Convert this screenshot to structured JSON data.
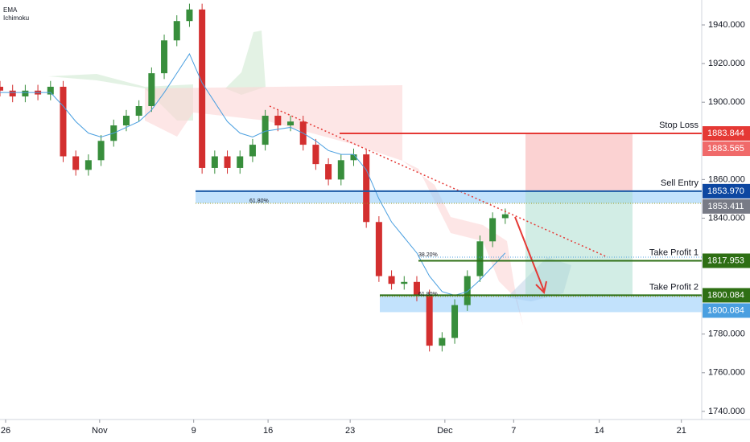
{
  "chart_data": {
    "type": "candlestick",
    "indicators": [
      "EMA",
      "Ichimoku"
    ],
    "xlim": [
      0,
      100
    ],
    "ylim": [
      1735.8,
      1952.9
    ],
    "xticks": [
      {
        "value": 0.8,
        "label": "26"
      },
      {
        "value": 14.2,
        "label": "Nov"
      },
      {
        "value": 27.6,
        "label": "9"
      },
      {
        "value": 38.2,
        "label": "16"
      },
      {
        "value": 49.9,
        "label": "23"
      },
      {
        "value": 63.4,
        "label": "Dec"
      },
      {
        "value": 73.2,
        "label": "7"
      },
      {
        "value": 85.4,
        "label": "14"
      },
      {
        "value": 97.1,
        "label": "21"
      }
    ],
    "yticks": [
      {
        "value": 1940,
        "label": "1940.000"
      },
      {
        "value": 1920,
        "label": "1920.000"
      },
      {
        "value": 1900,
        "label": "1900.000"
      },
      {
        "value": 1860,
        "label": "1860.000"
      },
      {
        "value": 1840,
        "label": "1840.000"
      },
      {
        "value": 1780,
        "label": "1780.000"
      },
      {
        "value": 1760,
        "label": "1760.000"
      },
      {
        "value": 1740,
        "label": "1740.000"
      }
    ],
    "x": [
      0,
      1.8,
      3.6,
      5.4,
      7.2,
      9,
      10.8,
      12.6,
      14.4,
      16.2,
      18,
      19.8,
      21.6,
      23.4,
      25.2,
      27,
      28.8,
      30.6,
      32.4,
      34.2,
      36,
      37.8,
      39.6,
      41.4,
      43.2,
      45,
      46.8,
      48.6,
      50.4,
      52.2,
      54,
      55.8,
      57.6,
      59.4,
      61.2,
      63,
      64.8,
      66.6,
      68.4,
      70.2,
      72
    ],
    "open": [
      1908,
      1906,
      1903,
      1906,
      1904,
      1908,
      1872,
      1865,
      1870,
      1880,
      1888,
      1893,
      1898,
      1915,
      1932,
      1942,
      1948,
      1866,
      1872,
      1866,
      1872,
      1878,
      1893,
      1888,
      1890,
      1878,
      1868,
      1860,
      1870,
      1873,
      1838,
      1810,
      1806,
      1807,
      1800,
      1774,
      1778,
      1795,
      1810,
      1828,
      1840
    ],
    "high": [
      1911,
      1909,
      1909,
      1909,
      1911,
      1911,
      1875,
      1873,
      1883,
      1891,
      1896,
      1901,
      1918,
      1935,
      1945,
      1951,
      1951,
      1875,
      1875,
      1875,
      1881,
      1896,
      1896,
      1893,
      1893,
      1881,
      1871,
      1873,
      1876,
      1876,
      1841,
      1813,
      1810,
      1810,
      1803,
      1781,
      1798,
      1813,
      1831,
      1843,
      1845
    ],
    "low": [
      1903,
      1900,
      1900,
      1901,
      1901,
      1869,
      1862,
      1862,
      1867,
      1877,
      1885,
      1890,
      1895,
      1912,
      1929,
      1939,
      1863,
      1863,
      1863,
      1863,
      1869,
      1875,
      1885,
      1885,
      1875,
      1865,
      1857,
      1857,
      1867,
      1835,
      1807,
      1803,
      1803,
      1797,
      1771,
      1771,
      1775,
      1792,
      1807,
      1825,
      1837
    ],
    "close": [
      1906,
      1903,
      1906,
      1904,
      1908,
      1872,
      1865,
      1870,
      1880,
      1888,
      1893,
      1898,
      1915,
      1932,
      1942,
      1948,
      1866,
      1872,
      1866,
      1872,
      1878,
      1893,
      1888,
      1890,
      1878,
      1868,
      1860,
      1870,
      1873,
      1838,
      1810,
      1806,
      1807,
      1800,
      1774,
      1778,
      1795,
      1810,
      1828,
      1840,
      1842
    ],
    "ema": [
      1905,
      1905,
      1905,
      1905,
      1905,
      1898,
      1890,
      1884,
      1882,
      1884,
      1887,
      1890,
      1896,
      1905,
      1915,
      1925,
      1910,
      1900,
      1890,
      1884,
      1882,
      1885,
      1886,
      1887,
      1884,
      1880,
      1875,
      1873,
      1873,
      1865,
      1850,
      1838,
      1830,
      1822,
      1810,
      1802,
      1800,
      1802,
      1808,
      1815,
      1822
    ],
    "up_color": "#388e3c",
    "down_color": "#d32f2f",
    "ema_color": "#4a9fe0",
    "levels": [
      {
        "name": "Stop Loss",
        "value": 1883.844,
        "color": "#e53935"
      },
      {
        "name": "Sell Entry",
        "value": 1853.97,
        "color": "#1b5aa6"
      },
      {
        "name": "Take Profit 1",
        "value": 1817.953,
        "color": "#2e6f14"
      },
      {
        "name": "Take Profit 2",
        "value": 1800.084,
        "color": "#2e6f14"
      }
    ],
    "price_tags": [
      {
        "value": 1883.844,
        "label": "1883.844",
        "color": "#e53935"
      },
      {
        "value": 1883.565,
        "label": "1883.565",
        "color": "#f06a6a"
      },
      {
        "value": 1853.97,
        "label": "1853.970",
        "color": "#0d47a1"
      },
      {
        "value": 1853.411,
        "label": "1853.411",
        "color": "#787b86"
      },
      {
        "value": 1817.953,
        "label": "1817.953",
        "color": "#2e6f14"
      },
      {
        "value": 1800.084,
        "label": "1800.084",
        "color": "#2e6f14"
      },
      {
        "value": 1800.084,
        "label": "1800.084",
        "color": "#4a9fe0"
      }
    ],
    "fib_labels": [
      "61.80%",
      "38.20%",
      "61.80%"
    ]
  }
}
